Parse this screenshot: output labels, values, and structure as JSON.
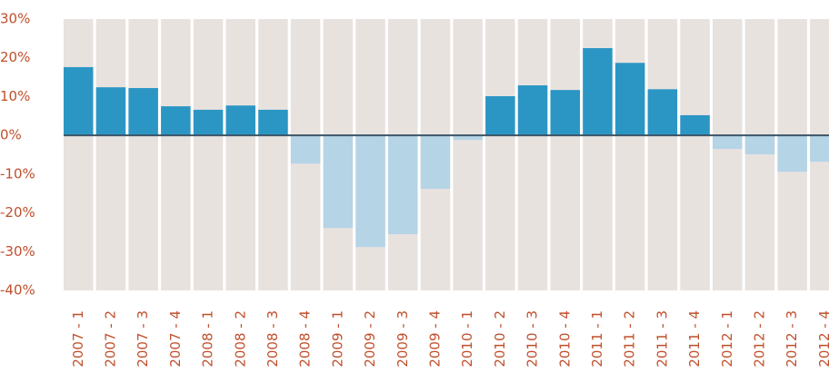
{
  "chart_data": {
    "type": "bar",
    "categories": [
      "2007 - 1",
      "2007 - 2",
      "2007 - 3",
      "2007 - 4",
      "2008 - 1",
      "2008 - 2",
      "2008 - 3",
      "2008 - 4",
      "2009 - 1",
      "2009 - 2",
      "2009 - 3",
      "2009 - 4",
      "2010 - 1",
      "2010 - 2",
      "2010 - 3",
      "2010 - 4",
      "2011 - 1",
      "2011 - 2",
      "2011 - 3",
      "2011 - 4",
      "2012 - 1",
      "2012 - 2",
      "2012 - 3",
      "2012 - 4"
    ],
    "values": [
      17.6,
      12.4,
      12.2,
      7.5,
      6.6,
      7.7,
      6.6,
      -7.3,
      -23.9,
      -28.8,
      -25.5,
      -13.8,
      -1.2,
      10.1,
      12.9,
      11.7,
      22.5,
      18.7,
      11.9,
      5.2,
      -3.5,
      -4.9,
      -9.4,
      -6.8
    ],
    "color": "#2b96c4",
    "negative_color": "#b5d4e6",
    "ylim": [
      -40,
      30
    ],
    "yticks": [
      {
        "value": -40,
        "label": "-40%"
      },
      {
        "value": -30,
        "label": "-30%"
      },
      {
        "value": -20,
        "label": "-20%"
      },
      {
        "value": -10,
        "label": "-10%"
      },
      {
        "value": 0,
        "label": "0%"
      },
      {
        "value": 10,
        "label": "10%"
      },
      {
        "value": 20,
        "label": "20%"
      },
      {
        "value": 30,
        "label": "30%"
      }
    ]
  }
}
